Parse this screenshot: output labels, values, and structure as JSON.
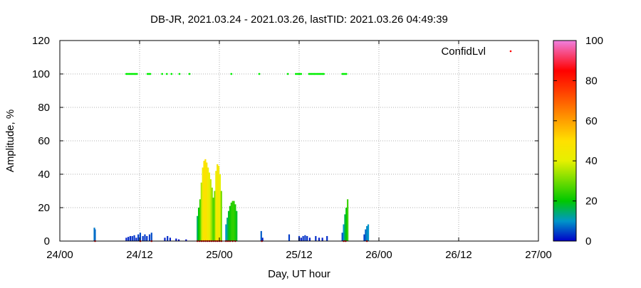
{
  "chart_data": {
    "type": "bar",
    "title": "DB-JR, 2021.03.24 - 2021.03.26, lastTID: 2021.03.26 04:49:39",
    "xlabel": "Day, UT hour",
    "ylabel": "Amplitude, %",
    "xlim": [
      0,
      72
    ],
    "ylim": [
      0,
      120
    ],
    "x_ticks": [
      {
        "value": 0,
        "label": "24/00"
      },
      {
        "value": 12,
        "label": "24/12"
      },
      {
        "value": 24,
        "label": "25/00"
      },
      {
        "value": 36,
        "label": "25/12"
      },
      {
        "value": 48,
        "label": "26/00"
      },
      {
        "value": 60,
        "label": "26/12"
      },
      {
        "value": 72,
        "label": "27/00"
      }
    ],
    "y_ticks": [
      0,
      20,
      40,
      60,
      80,
      100,
      120
    ],
    "grid": true,
    "legend": {
      "label": "ConfidLvl",
      "position": "top-right",
      "marker_color": "#ff0000"
    },
    "colorbar": {
      "min": 0,
      "max": 100,
      "ticks": [
        0,
        20,
        40,
        60,
        80,
        100
      ],
      "stops": [
        {
          "value": 0,
          "color": "#0000c8"
        },
        {
          "value": 10,
          "color": "#0096c8"
        },
        {
          "value": 20,
          "color": "#00c800"
        },
        {
          "value": 40,
          "color": "#e6f000"
        },
        {
          "value": 50,
          "color": "#ffe000"
        },
        {
          "value": 60,
          "color": "#ffa000"
        },
        {
          "value": 75,
          "color": "#ff3c00"
        },
        {
          "value": 85,
          "color": "#ff0000"
        },
        {
          "value": 100,
          "color": "#f080e0"
        }
      ]
    },
    "series": [
      {
        "kind": "amplitude_bars",
        "bars": [
          {
            "x": 5.2,
            "y": 8
          },
          {
            "x": 5.3,
            "y": 7
          },
          {
            "x": 10.0,
            "y": 2
          },
          {
            "x": 10.3,
            "y": 2.5
          },
          {
            "x": 10.6,
            "y": 3
          },
          {
            "x": 10.9,
            "y": 3
          },
          {
            "x": 11.2,
            "y": 3.5
          },
          {
            "x": 11.5,
            "y": 2
          },
          {
            "x": 11.8,
            "y": 4
          },
          {
            "x": 12.1,
            "y": 5
          },
          {
            "x": 12.5,
            "y": 3
          },
          {
            "x": 12.8,
            "y": 4
          },
          {
            "x": 13.1,
            "y": 3
          },
          {
            "x": 13.5,
            "y": 4
          },
          {
            "x": 13.8,
            "y": 5
          },
          {
            "x": 15.8,
            "y": 2
          },
          {
            "x": 16.2,
            "y": 3
          },
          {
            "x": 16.6,
            "y": 2
          },
          {
            "x": 17.5,
            "y": 1.5
          },
          {
            "x": 17.9,
            "y": 1
          },
          {
            "x": 19.0,
            "y": 1
          },
          {
            "x": 20.7,
            "y": 15
          },
          {
            "x": 20.9,
            "y": 20
          },
          {
            "x": 21.1,
            "y": 25
          },
          {
            "x": 21.3,
            "y": 35
          },
          {
            "x": 21.5,
            "y": 44
          },
          {
            "x": 21.7,
            "y": 48
          },
          {
            "x": 21.9,
            "y": 49
          },
          {
            "x": 22.1,
            "y": 47
          },
          {
            "x": 22.3,
            "y": 44
          },
          {
            "x": 22.5,
            "y": 41
          },
          {
            "x": 22.7,
            "y": 37
          },
          {
            "x": 22.9,
            "y": 32
          },
          {
            "x": 23.1,
            "y": 26
          },
          {
            "x": 23.3,
            "y": 30
          },
          {
            "x": 23.5,
            "y": 42
          },
          {
            "x": 23.7,
            "y": 46
          },
          {
            "x": 23.9,
            "y": 45
          },
          {
            "x": 24.1,
            "y": 40
          },
          {
            "x": 24.3,
            "y": 30
          },
          {
            "x": 25.0,
            "y": 10
          },
          {
            "x": 25.2,
            "y": 14
          },
          {
            "x": 25.4,
            "y": 18
          },
          {
            "x": 25.6,
            "y": 21
          },
          {
            "x": 25.8,
            "y": 23
          },
          {
            "x": 26.0,
            "y": 24
          },
          {
            "x": 26.2,
            "y": 24
          },
          {
            "x": 26.4,
            "y": 22
          },
          {
            "x": 26.6,
            "y": 18
          },
          {
            "x": 30.3,
            "y": 6
          },
          {
            "x": 30.5,
            "y": 2
          },
          {
            "x": 34.5,
            "y": 4
          },
          {
            "x": 36.0,
            "y": 3
          },
          {
            "x": 36.3,
            "y": 2
          },
          {
            "x": 36.6,
            "y": 3
          },
          {
            "x": 36.9,
            "y": 3.5
          },
          {
            "x": 37.2,
            "y": 3
          },
          {
            "x": 37.6,
            "y": 2
          },
          {
            "x": 38.5,
            "y": 3
          },
          {
            "x": 39.0,
            "y": 2
          },
          {
            "x": 39.5,
            "y": 2
          },
          {
            "x": 40.2,
            "y": 3
          },
          {
            "x": 42.5,
            "y": 5
          },
          {
            "x": 42.7,
            "y": 10
          },
          {
            "x": 42.9,
            "y": 16
          },
          {
            "x": 43.1,
            "y": 20
          },
          {
            "x": 43.3,
            "y": 25
          },
          {
            "x": 45.8,
            "y": 4
          },
          {
            "x": 46.0,
            "y": 7
          },
          {
            "x": 46.2,
            "y": 9
          },
          {
            "x": 46.4,
            "y": 10
          }
        ]
      },
      {
        "kind": "confidence_points",
        "name": "ConfidLvl",
        "color": "#00ee00",
        "y": 100,
        "x": [
          10.0,
          10.2,
          10.4,
          10.6,
          10.8,
          11.0,
          11.2,
          11.4,
          11.6,
          13.2,
          13.4,
          13.6,
          15.4,
          16.1,
          16.8,
          18.0,
          19.5,
          25.8,
          30.0,
          34.3,
          35.5,
          35.7,
          35.9,
          36.1,
          36.3,
          37.5,
          37.7,
          37.9,
          38.1,
          38.3,
          38.5,
          38.7,
          38.9,
          39.1,
          39.3,
          39.5,
          39.7,
          42.5,
          42.7,
          42.9,
          43.1
        ]
      },
      {
        "kind": "baseline_points",
        "color": "#ff0000",
        "y": 0,
        "x": [
          5.3,
          12.1,
          13.8,
          20.7,
          21.0,
          21.3,
          21.6,
          21.9,
          22.2,
          22.5,
          22.8,
          23.1,
          23.4,
          23.7,
          24.0,
          24.3,
          25.0,
          25.3,
          25.6,
          26.0,
          26.4,
          30.4,
          42.7,
          43.0,
          46.2
        ]
      }
    ]
  }
}
